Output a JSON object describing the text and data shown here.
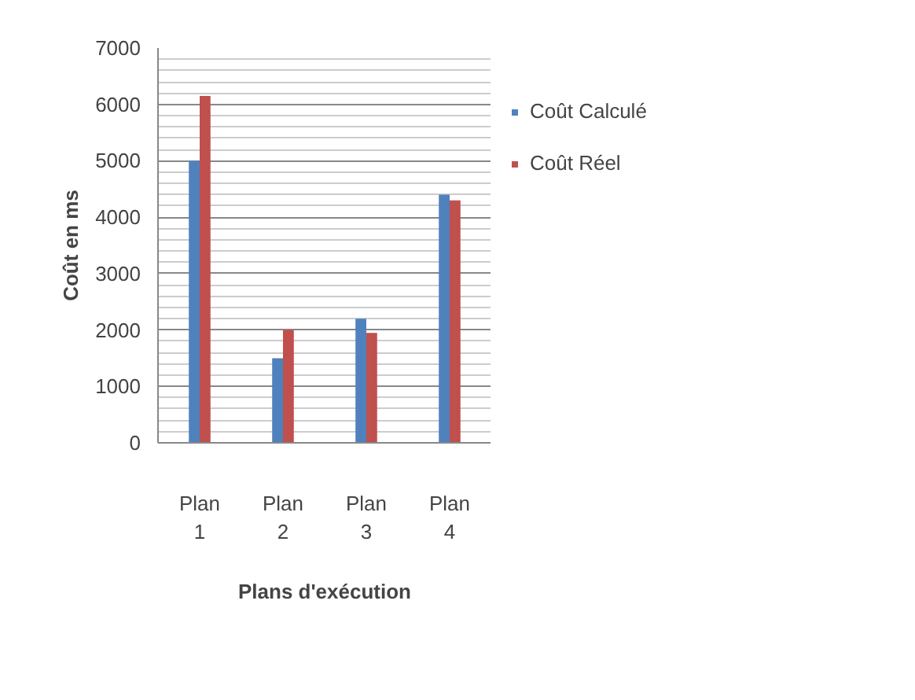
{
  "chart_data": {
    "type": "bar",
    "xlabel": "Plans d'exécution",
    "ylabel": "Coût en ms",
    "categories": [
      "Plan 1",
      "Plan 2",
      "Plan 3",
      "Plan 4"
    ],
    "series": [
      {
        "name": "Coût Calculé",
        "color": "#4f81bd",
        "values": [
          5000,
          1500,
          2200,
          4400
        ]
      },
      {
        "name": "Coût Réel",
        "color": "#c0504d",
        "values": [
          6150,
          2000,
          1950,
          4300
        ]
      }
    ],
    "ylim": [
      0,
      7000
    ],
    "yticks": [
      0,
      1000,
      2000,
      3000,
      4000,
      5000,
      6000,
      7000
    ],
    "grid": "y",
    "legend": "right"
  }
}
